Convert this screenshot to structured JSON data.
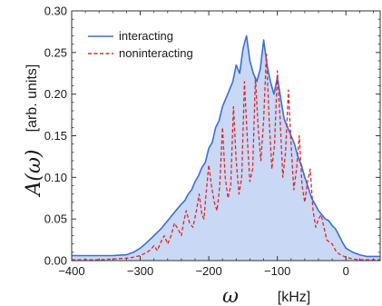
{
  "chart_data": {
    "type": "area",
    "xlabel": "ω",
    "xunit": "[kHz]",
    "ylabel": "A(ω)",
    "yunit": "[arb. units]",
    "xlim": [
      -400,
      50
    ],
    "ylim": [
      0,
      0.3
    ],
    "xticks": [
      -400,
      -300,
      -200,
      -100,
      0
    ],
    "xtick_labels": [
      "−400",
      "−300",
      "−200",
      "−100",
      "0"
    ],
    "yticks": [
      0.0,
      0.05,
      0.1,
      0.15,
      0.2,
      0.25,
      0.3
    ],
    "ytick_labels": [
      "0.00",
      "0.05",
      "0.10",
      "0.15",
      "0.20",
      "0.25",
      "0.30"
    ],
    "grid": false,
    "legend_position": "top-left",
    "colors": {
      "interacting_line": "#3b6fd4",
      "interacting_fill": "#c9d8f5",
      "noninteracting_line": "#e0262a"
    },
    "series": [
      {
        "name": "interacting",
        "style": "solid",
        "x": [
          -400,
          -380,
          -360,
          -340,
          -320,
          -310,
          -300,
          -290,
          -280,
          -270,
          -260,
          -250,
          -240,
          -235,
          -230,
          -225,
          -220,
          -215,
          -210,
          -205,
          -200,
          -195,
          -190,
          -185,
          -180,
          -175,
          -170,
          -165,
          -160,
          -155,
          -150,
          -145,
          -140,
          -135,
          -130,
          -125,
          -120,
          -115,
          -110,
          -105,
          -100,
          -95,
          -90,
          -85,
          -80,
          -75,
          -70,
          -65,
          -60,
          -55,
          -50,
          -45,
          -40,
          -35,
          -30,
          -25,
          -20,
          -15,
          -10,
          -5,
          0,
          10,
          20,
          30,
          40,
          50
        ],
        "y": [
          0.006,
          0.006,
          0.006,
          0.006,
          0.007,
          0.01,
          0.015,
          0.022,
          0.03,
          0.038,
          0.048,
          0.058,
          0.068,
          0.072,
          0.08,
          0.085,
          0.095,
          0.102,
          0.112,
          0.118,
          0.135,
          0.142,
          0.16,
          0.168,
          0.185,
          0.195,
          0.205,
          0.215,
          0.235,
          0.225,
          0.255,
          0.27,
          0.24,
          0.225,
          0.215,
          0.23,
          0.265,
          0.235,
          0.215,
          0.2,
          0.22,
          0.195,
          0.17,
          0.16,
          0.15,
          0.14,
          0.125,
          0.115,
          0.1,
          0.088,
          0.075,
          0.068,
          0.06,
          0.055,
          0.05,
          0.048,
          0.042,
          0.038,
          0.03,
          0.022,
          0.015,
          0.01,
          0.007,
          0.005,
          0.005,
          0.005
        ]
      },
      {
        "name": "noninteracting",
        "style": "dashed",
        "x": [
          -400,
          -380,
          -360,
          -340,
          -320,
          -310,
          -300,
          -290,
          -285,
          -280,
          -275,
          -270,
          -265,
          -260,
          -255,
          -250,
          -245,
          -240,
          -237,
          -233,
          -228,
          -223,
          -218,
          -214,
          -210,
          -207,
          -204,
          -200,
          -196,
          -192,
          -188,
          -184,
          -180,
          -176,
          -172,
          -168,
          -164,
          -160,
          -156,
          -152,
          -148,
          -144,
          -140,
          -136,
          -132,
          -128,
          -124,
          -120,
          -116,
          -112,
          -108,
          -104,
          -100,
          -96,
          -92,
          -88,
          -84,
          -80,
          -76,
          -72,
          -68,
          -64,
          -60,
          -56,
          -52,
          -48,
          -44,
          -40,
          -36,
          -32,
          -28,
          -24,
          -20,
          -15,
          -10,
          0,
          10,
          20,
          30,
          40,
          50
        ],
        "y": [
          0.001,
          0.001,
          0.001,
          0.002,
          0.003,
          0.004,
          0.006,
          0.01,
          0.013,
          0.018,
          0.012,
          0.022,
          0.03,
          0.02,
          0.03,
          0.045,
          0.038,
          0.03,
          0.045,
          0.06,
          0.045,
          0.04,
          0.06,
          0.08,
          0.055,
          0.05,
          0.08,
          0.115,
          0.09,
          0.07,
          0.06,
          0.09,
          0.16,
          0.1,
          0.075,
          0.09,
          0.185,
          0.12,
          0.08,
          0.1,
          0.215,
          0.15,
          0.095,
          0.11,
          0.22,
          0.16,
          0.12,
          0.17,
          0.248,
          0.17,
          0.11,
          0.14,
          0.228,
          0.17,
          0.1,
          0.13,
          0.205,
          0.14,
          0.085,
          0.11,
          0.15,
          0.09,
          0.07,
          0.095,
          0.11,
          0.06,
          0.04,
          0.05,
          0.055,
          0.04,
          0.025,
          0.022,
          0.02,
          0.012,
          0.008,
          0.004,
          0.002,
          0.001,
          0.001,
          0.001,
          0.001
        ]
      }
    ]
  }
}
